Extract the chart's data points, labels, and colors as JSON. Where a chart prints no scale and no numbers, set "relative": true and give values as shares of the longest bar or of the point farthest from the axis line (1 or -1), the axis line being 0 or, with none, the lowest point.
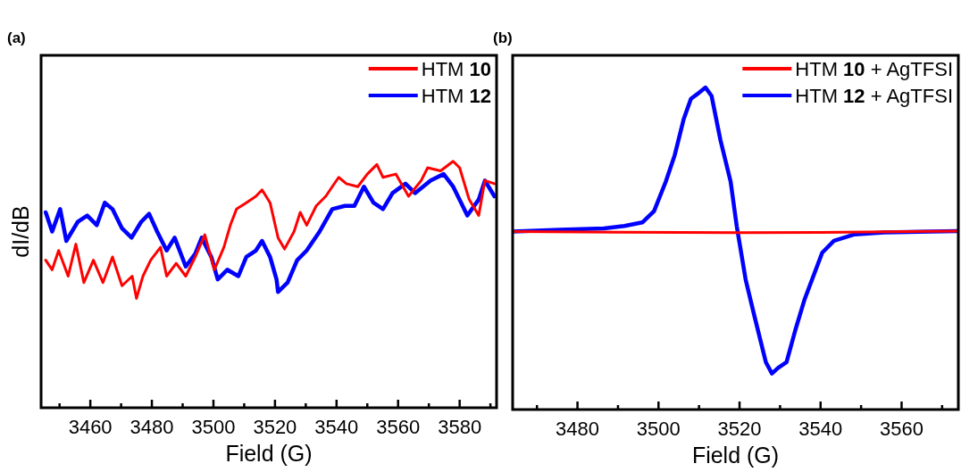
{
  "chart_data": [
    {
      "type": "line",
      "relative": true,
      "xlabel": "Field (G)",
      "ylabel": "dI/dB",
      "annotations": [
        "(a)"
      ],
      "legend": "top right",
      "xlim": [
        3444,
        3592
      ],
      "xticks": [
        {
          "value": 3450,
          "label": null
        },
        3460,
        {
          "value": 3470,
          "label": null
        },
        3480,
        {
          "value": 3490,
          "label": null
        },
        3500,
        {
          "value": 3510,
          "label": null
        },
        3520,
        {
          "value": 3530,
          "label": null
        },
        3540,
        {
          "value": 3550,
          "label": null
        },
        3560,
        {
          "value": 3570,
          "label": null
        },
        3580,
        {
          "value": 3590,
          "label": null
        }
      ],
      "series": [
        {
          "name": "HTM 10",
          "color": "#ff0000",
          "x": [
            3445.5,
            3447.6,
            3449.7,
            3452.8,
            3455.3,
            3457.9,
            3461,
            3464.1,
            3467.2,
            3470.3,
            3473.6,
            3475,
            3477.1,
            3479.6,
            3482.8,
            3484.8,
            3487.9,
            3491,
            3494.1,
            3497.2,
            3500.3,
            3503.4,
            3505.5,
            3507.5,
            3510.7,
            3513.8,
            3515.8,
            3518.4,
            3521,
            3523.1,
            3526.2,
            3528.2,
            3530.3,
            3533.4,
            3536.5,
            3538.6,
            3540.7,
            3543.2,
            3546.9,
            3550,
            3553.1,
            3555.1,
            3559.3,
            3563.4,
            3567.5,
            3569.6,
            3573.8,
            3577.9,
            3580,
            3583.1,
            3586.2,
            3588.2,
            3591.3
          ],
          "values": [
            0.599,
            0.56,
            0.638,
            0.534,
            0.664,
            0.508,
            0.599,
            0.508,
            0.612,
            0.495,
            0.534,
            0.444,
            0.534,
            0.599,
            0.651,
            0.534,
            0.586,
            0.534,
            0.612,
            0.702,
            0.56,
            0.651,
            0.741,
            0.806,
            0.832,
            0.858,
            0.884,
            0.832,
            0.69,
            0.644,
            0.715,
            0.793,
            0.741,
            0.819,
            0.858,
            0.897,
            0.935,
            0.909,
            0.897,
            0.948,
            0.987,
            0.935,
            0.948,
            0.858,
            0.922,
            0.974,
            0.961,
            1.0,
            0.974,
            0.845,
            0.78,
            0.922,
            0.909
          ]
        },
        {
          "name": "HTM 12",
          "color": "#0000ff",
          "x": [
            3445.5,
            3447.6,
            3450.2,
            3452.2,
            3455.9,
            3459,
            3462.1,
            3464.7,
            3467.2,
            3470.3,
            3473.4,
            3476.5,
            3479.1,
            3481.7,
            3484.8,
            3487.4,
            3491,
            3494.1,
            3496.2,
            3499.3,
            3501.4,
            3504.5,
            3508.1,
            3510.7,
            3513.8,
            3515.8,
            3518.4,
            3520.5,
            3521,
            3524.1,
            3527.2,
            3530.3,
            3534.5,
            3538.6,
            3542.7,
            3545.8,
            3548.9,
            3552,
            3555.1,
            3558.2,
            3562.4,
            3565.5,
            3570.6,
            3574.8,
            3577.9,
            3582.5,
            3586.2,
            3588.2,
            3591.3
          ],
          "values": [
            0.793,
            0.715,
            0.806,
            0.677,
            0.754,
            0.78,
            0.741,
            0.832,
            0.806,
            0.728,
            0.69,
            0.754,
            0.787,
            0.715,
            0.638,
            0.69,
            0.573,
            0.625,
            0.69,
            0.612,
            0.521,
            0.56,
            0.534,
            0.612,
            0.638,
            0.677,
            0.612,
            0.521,
            0.47,
            0.508,
            0.599,
            0.638,
            0.715,
            0.806,
            0.819,
            0.819,
            0.897,
            0.832,
            0.806,
            0.871,
            0.909,
            0.871,
            0.922,
            0.948,
            0.897,
            0.78,
            0.845,
            0.922,
            0.858
          ]
        }
      ]
    },
    {
      "type": "line",
      "relative": true,
      "xlabel": "Field (G)",
      "annotations": [
        "(b)"
      ],
      "legend": "top right",
      "xlim": [
        3464,
        3574
      ],
      "xticks": [
        {
          "value": 3470,
          "label": null
        },
        3480,
        {
          "value": 3490,
          "label": null
        },
        3500,
        {
          "value": 3510,
          "label": null
        },
        3520,
        {
          "value": 3530,
          "label": null
        },
        3540,
        {
          "value": 3550,
          "label": null
        },
        3560,
        {
          "value": 3570,
          "label": null
        }
      ],
      "series": [
        {
          "name": "HTM 10 + AgTFSI",
          "color": "#ff0000",
          "x": [
            3464,
            3490,
            3520,
            3540,
            3574
          ],
          "values": [
            0.553,
            0.551,
            0.549,
            0.55,
            0.554
          ]
        },
        {
          "name": "HTM 12 + AgTFSI",
          "color": "#0000ff",
          "x": [
            3464,
            3475.6,
            3486.5,
            3491.6,
            3496,
            3498.9,
            3501.8,
            3504,
            3506.2,
            3508,
            3509.5,
            3511.6,
            3513.1,
            3515.3,
            3517.8,
            3519.3,
            3521.5,
            3523.6,
            3526.5,
            3528,
            3529.5,
            3531.6,
            3533.8,
            3536,
            3540.4,
            3543.3,
            3548.4,
            3555.7,
            3573.7
          ],
          "values": [
            0.553,
            0.558,
            0.5625,
            0.57,
            0.581,
            0.616,
            0.708,
            0.79,
            0.901,
            0.965,
            0.979,
            1.0,
            0.974,
            0.836,
            0.708,
            0.57,
            0.404,
            0.294,
            0.147,
            0.112,
            0.129,
            0.147,
            0.248,
            0.34,
            0.487,
            0.524,
            0.544,
            0.55,
            0.554
          ]
        }
      ]
    }
  ]
}
